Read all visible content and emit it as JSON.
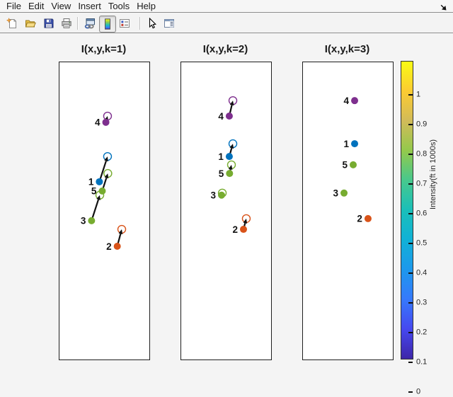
{
  "menu": {
    "items": [
      "File",
      "Edit",
      "View",
      "Insert",
      "Tools",
      "Help"
    ]
  },
  "toolbar": {
    "buttons": [
      {
        "name": "new-figure",
        "icon": "new-document-icon",
        "pressed": false
      },
      {
        "name": "open-file",
        "icon": "open-folder-icon",
        "pressed": false
      },
      {
        "name": "save-figure",
        "icon": "save-icon",
        "pressed": false
      },
      {
        "name": "print-figure",
        "icon": "print-icon",
        "pressed": false
      },
      {
        "name": "link-plot",
        "icon": "link-plot-icon",
        "pressed": false
      },
      {
        "name": "insert-colorbar",
        "icon": "colorbar-icon",
        "pressed": true
      },
      {
        "name": "insert-legend",
        "icon": "legend-icon",
        "pressed": false
      },
      {
        "name": "edit-plot",
        "icon": "arrow-cursor-icon",
        "pressed": false
      },
      {
        "name": "show-plot-tools",
        "icon": "plot-tools-icon",
        "pressed": false
      }
    ]
  },
  "chart_data": {
    "type": "scatter",
    "description": "Tracked points over 3 frames. Filled dot = position at frame k; open circle = position at frame k+1; black arrow = displacement vector. Frame k=3 shows dots only.",
    "panels": [
      {
        "k": 1,
        "title": "I(x,y,k=1)"
      },
      {
        "k": 2,
        "title": "I(x,y,k=2)"
      },
      {
        "k": 3,
        "title": "I(x,y,k=3)"
      }
    ],
    "points": [
      {
        "id": "1",
        "color": "#0072BD",
        "track_xy_fraction": [
          [
            0.444,
            0.402
          ],
          [
            0.535,
            0.317
          ],
          [
            0.575,
            0.274
          ]
        ]
      },
      {
        "id": "2",
        "color": "#D95319",
        "track_xy_fraction": [
          [
            0.643,
            0.619
          ],
          [
            0.693,
            0.562
          ],
          [
            0.724,
            0.526
          ]
        ]
      },
      {
        "id": "3",
        "color": "#77AC30",
        "track_xy_fraction": [
          [
            0.357,
            0.533
          ],
          [
            0.449,
            0.447
          ],
          [
            0.457,
            0.44
          ]
        ]
      },
      {
        "id": "4",
        "color": "#7E2F8E",
        "track_xy_fraction": [
          [
            0.516,
            0.202
          ],
          [
            0.535,
            0.181
          ],
          [
            0.575,
            0.129
          ]
        ]
      },
      {
        "id": "5",
        "color": "#77AC30",
        "track_xy_fraction": [
          [
            0.476,
            0.433
          ],
          [
            0.538,
            0.374
          ],
          [
            0.559,
            0.345
          ]
        ]
      }
    ],
    "colorbar": {
      "label": "Intensity(ft in 1000s)",
      "range": [
        0,
        1
      ],
      "ticks_top_to_bottom": [
        "1",
        "0.9",
        "0.8",
        "0.7",
        "0.6",
        "0.5",
        "0.4",
        "0.3",
        "0.2",
        "0.1",
        "0"
      ],
      "colormap": "parula",
      "gradient_stops_bottom_to_top": [
        "#3E26A8",
        "#4648EF",
        "#3679FC",
        "#1D98EC",
        "#11B1D6",
        "#1ABFB9",
        "#47C88D",
        "#93C94C",
        "#D1BB59",
        "#FCCB32",
        "#F9FB14"
      ]
    }
  }
}
